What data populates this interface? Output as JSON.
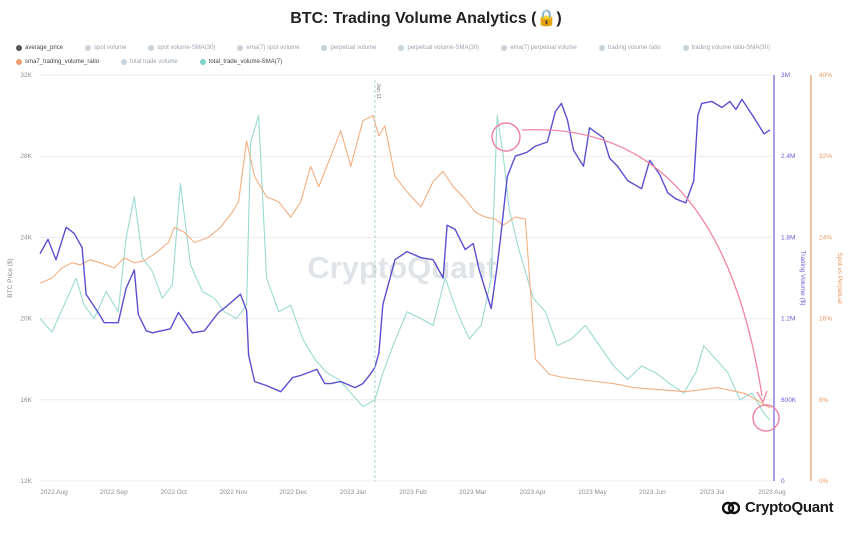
{
  "title": "BTC: Trading Volume Analytics (🔒)",
  "legend": [
    {
      "label": "average_price",
      "color": "#555555",
      "active": true
    },
    {
      "label": "spot volume",
      "color": "#c9d3dc",
      "active": false
    },
    {
      "label": "spot volume-SMA(30)",
      "color": "#c9d3dc",
      "active": false
    },
    {
      "label": "ema(7) spot volume",
      "color": "#c9d3dc",
      "active": false
    },
    {
      "label": "perpetual volume",
      "color": "#c9d3dc",
      "active": false
    },
    {
      "label": "perpetual volume-SMA(30)",
      "color": "#c9d3dc",
      "active": false
    },
    {
      "label": "ema(7) perpetual volume",
      "color": "#c9d3dc",
      "active": false
    },
    {
      "label": "trading volume ratio",
      "color": "#c9d3dc",
      "active": false
    },
    {
      "label": "trading volume ratio-SMA(30)",
      "color": "#c9d3dc",
      "active": false
    },
    {
      "label": "sma7_trading_volume_ratio",
      "color": "#f0a070",
      "active": true
    },
    {
      "label": "total trade volume",
      "color": "#c9d3dc",
      "active": false
    },
    {
      "label": "total_trade_volume-SMA(7)",
      "color": "#7fd3c8",
      "active": true
    }
  ],
  "chart_data": {
    "type": "line",
    "title": "BTC: Trading Volume Analytics (🔒)",
    "watermark": "CryptoQuant",
    "annotation": "Jan 11",
    "x_ticks": [
      "2022 Aug",
      "2022 Sep",
      "2022 Oct",
      "2022 Nov",
      "2022 Dec",
      "2023 Jan",
      "2023 Feb",
      "2023 Mar",
      "2023 Apr",
      "2023 May",
      "2023 Jun",
      "2023 Jul",
      "2023 Aug"
    ],
    "x_range": [
      "2022-07-28",
      "2023-07-28"
    ],
    "axes": {
      "left": {
        "label": "BTC Price ($)",
        "ticks": [
          "12K",
          "16K",
          "20K",
          "24K",
          "28K",
          "32K"
        ],
        "range": [
          12000,
          32000
        ],
        "color": "#6a5fd0"
      },
      "right1": {
        "label": "Trading Volume ($)",
        "ticks": [
          "0",
          "600K",
          "1.2M",
          "1.8M",
          "2.4M",
          "3M"
        ],
        "range": [
          0,
          3000000
        ],
        "color": "#6a5fd0"
      },
      "right2": {
        "label": "Spot vs Perpetual",
        "ticks": [
          "0%",
          "8%",
          "16%",
          "24%",
          "32%",
          "40%"
        ],
        "range": [
          0,
          40
        ],
        "color": "#e89a63"
      }
    },
    "grid": true,
    "series": [
      {
        "name": "average_price",
        "color": "#5a4fcf",
        "axis": "left",
        "x": [
          "2022-07-28",
          "2022-08-01",
          "2022-08-05",
          "2022-08-10",
          "2022-08-14",
          "2022-08-18",
          "2022-08-20",
          "2022-08-26",
          "2022-08-29",
          "2022-09-05",
          "2022-09-09",
          "2022-09-13",
          "2022-09-15",
          "2022-09-19",
          "2022-09-22",
          "2022-10-01",
          "2022-10-05",
          "2022-10-12",
          "2022-10-18",
          "2022-10-25",
          "2022-10-29",
          "2022-11-05",
          "2022-11-08",
          "2022-11-09",
          "2022-11-12",
          "2022-11-18",
          "2022-11-25",
          "2022-12-01",
          "2022-12-05",
          "2022-12-13",
          "2022-12-17",
          "2022-12-20",
          "2022-12-25",
          "2023-01-01",
          "2023-01-05",
          "2023-01-09",
          "2023-01-11",
          "2023-01-13",
          "2023-01-15",
          "2023-01-21",
          "2023-01-27",
          "2023-02-03",
          "2023-02-09",
          "2023-02-14",
          "2023-02-16",
          "2023-02-20",
          "2023-02-25",
          "2023-03-01",
          "2023-03-04",
          "2023-03-10",
          "2023-03-13",
          "2023-03-15",
          "2023-03-18",
          "2023-03-22",
          "2023-03-28",
          "2023-04-01",
          "2023-04-07",
          "2023-04-11",
          "2023-04-14",
          "2023-04-17",
          "2023-04-20",
          "2023-04-25",
          "2023-04-28",
          "2023-05-05",
          "2023-05-08",
          "2023-05-12",
          "2023-05-17",
          "2023-05-24",
          "2023-05-28",
          "2023-06-02",
          "2023-06-06",
          "2023-06-10",
          "2023-06-15",
          "2023-06-19",
          "2023-06-21",
          "2023-06-23",
          "2023-06-28",
          "2023-07-03",
          "2023-07-07",
          "2023-07-10",
          "2023-07-13",
          "2023-07-15",
          "2023-07-19",
          "2023-07-24",
          "2023-07-27"
        ],
        "y": [
          23200,
          23900,
          22900,
          24500,
          24200,
          23500,
          21200,
          20300,
          19800,
          19800,
          21500,
          22400,
          20200,
          19400,
          19300,
          19500,
          20300,
          19300,
          19400,
          20300,
          20600,
          21200,
          20400,
          18200,
          16900,
          16700,
          16400,
          17100,
          17200,
          17500,
          16800,
          16800,
          16900,
          16600,
          16800,
          17300,
          17600,
          18300,
          20700,
          22900,
          23300,
          23000,
          22900,
          22000,
          24600,
          24400,
          23400,
          23700,
          22400,
          20500,
          22600,
          24300,
          27000,
          28000,
          28200,
          28500,
          28700,
          30200,
          30600,
          29800,
          28300,
          27500,
          29400,
          28900,
          27900,
          27500,
          26800,
          26400,
          27800,
          27100,
          26200,
          25900,
          25700,
          26800,
          30000,
          30600,
          30700,
          30400,
          30700,
          30300,
          30800,
          30500,
          29900,
          29100,
          29300
        ]
      },
      {
        "name": "sma7_trading_volume_ratio",
        "color": "#f0a774",
        "axis": "right2",
        "x": [
          "2022-07-28",
          "2022-08-03",
          "2022-08-08",
          "2022-08-13",
          "2022-08-17",
          "2022-08-22",
          "2022-08-27",
          "2022-09-03",
          "2022-09-08",
          "2022-09-13",
          "2022-09-18",
          "2022-09-24",
          "2022-09-30",
          "2022-10-03",
          "2022-10-08",
          "2022-10-13",
          "2022-10-20",
          "2022-10-26",
          "2022-11-01",
          "2022-11-04",
          "2022-11-08",
          "2022-11-12",
          "2022-11-18",
          "2022-11-24",
          "2022-11-30",
          "2022-12-05",
          "2022-12-10",
          "2022-12-14",
          "2022-12-20",
          "2022-12-25",
          "2022-12-30",
          "2023-01-05",
          "2023-01-10",
          "2023-01-13",
          "2023-01-16",
          "2023-01-21",
          "2023-01-27",
          "2023-02-03",
          "2023-02-09",
          "2023-02-14",
          "2023-02-19",
          "2023-02-24",
          "2023-03-02",
          "2023-03-07",
          "2023-03-12",
          "2023-03-16",
          "2023-03-22",
          "2023-03-27",
          "2023-04-01",
          "2023-04-08",
          "2023-04-15",
          "2023-04-23",
          "2023-05-01",
          "2023-05-10",
          "2023-05-20",
          "2023-06-01",
          "2023-06-15",
          "2023-07-01",
          "2023-07-15",
          "2023-07-27"
        ],
        "y": [
          19.5,
          20,
          21,
          21.5,
          21.3,
          21.8,
          21.5,
          21,
          22,
          21.5,
          21.7,
          22.5,
          23.5,
          25,
          24.5,
          23.5,
          24,
          25,
          26.5,
          27.5,
          33.5,
          30,
          28,
          27.5,
          26,
          27.5,
          31,
          29,
          32,
          34.5,
          31,
          35.5,
          36,
          34,
          35,
          30,
          28.5,
          27,
          29.5,
          30.5,
          29,
          28,
          26.5,
          26,
          25.8,
          25.2,
          26,
          25.8,
          12,
          10.5,
          10.2,
          10,
          9.8,
          9.6,
          9.2,
          9,
          8.8,
          9.2,
          8.6,
          7.2
        ]
      },
      {
        "name": "total_trade_volume-SMA(7)",
        "color": "#8fd6cc",
        "axis": "right1",
        "x": [
          "2022-07-28",
          "2022-08-03",
          "2022-08-09",
          "2022-08-15",
          "2022-08-19",
          "2022-08-24",
          "2022-08-30",
          "2022-09-05",
          "2022-09-09",
          "2022-09-13",
          "2022-09-17",
          "2022-09-22",
          "2022-09-27",
          "2022-10-02",
          "2022-10-06",
          "2022-10-11",
          "2022-10-17",
          "2022-10-23",
          "2022-10-28",
          "2022-11-03",
          "2022-11-08",
          "2022-11-10",
          "2022-11-14",
          "2022-11-18",
          "2022-11-24",
          "2022-11-30",
          "2022-12-06",
          "2022-12-12",
          "2022-12-18",
          "2022-12-24",
          "2022-12-30",
          "2023-01-05",
          "2023-01-11",
          "2023-01-15",
          "2023-01-20",
          "2023-01-27",
          "2023-02-03",
          "2023-02-09",
          "2023-02-15",
          "2023-02-21",
          "2023-02-27",
          "2023-03-05",
          "2023-03-10",
          "2023-03-13",
          "2023-03-16",
          "2023-03-19",
          "2023-03-24",
          "2023-03-31",
          "2023-04-06",
          "2023-04-12",
          "2023-04-19",
          "2023-04-26",
          "2023-05-03",
          "2023-05-10",
          "2023-05-17",
          "2023-05-24",
          "2023-05-31",
          "2023-06-07",
          "2023-06-14",
          "2023-06-20",
          "2023-06-24",
          "2023-06-30",
          "2023-07-06",
          "2023-07-12",
          "2023-07-18",
          "2023-07-24",
          "2023-07-27"
        ],
        "y": [
          1200000,
          1100000,
          1300000,
          1500000,
          1300000,
          1200000,
          1400000,
          1250000,
          1800000,
          2100000,
          1650000,
          1550000,
          1350000,
          1450000,
          2200000,
          1600000,
          1400000,
          1350000,
          1250000,
          1200000,
          1300000,
          2500000,
          2700000,
          1500000,
          1250000,
          1300000,
          1050000,
          900000,
          800000,
          750000,
          650000,
          550000,
          600000,
          800000,
          1000000,
          1250000,
          1200000,
          1150000,
          1500000,
          1250000,
          1050000,
          1150000,
          1500000,
          2700000,
          2400000,
          2000000,
          1700000,
          1350000,
          1250000,
          1000000,
          1050000,
          1150000,
          1000000,
          850000,
          750000,
          850000,
          800000,
          720000,
          650000,
          800000,
          1000000,
          900000,
          800000,
          600000,
          650000,
          500000,
          450000
        ]
      }
    ]
  }
}
